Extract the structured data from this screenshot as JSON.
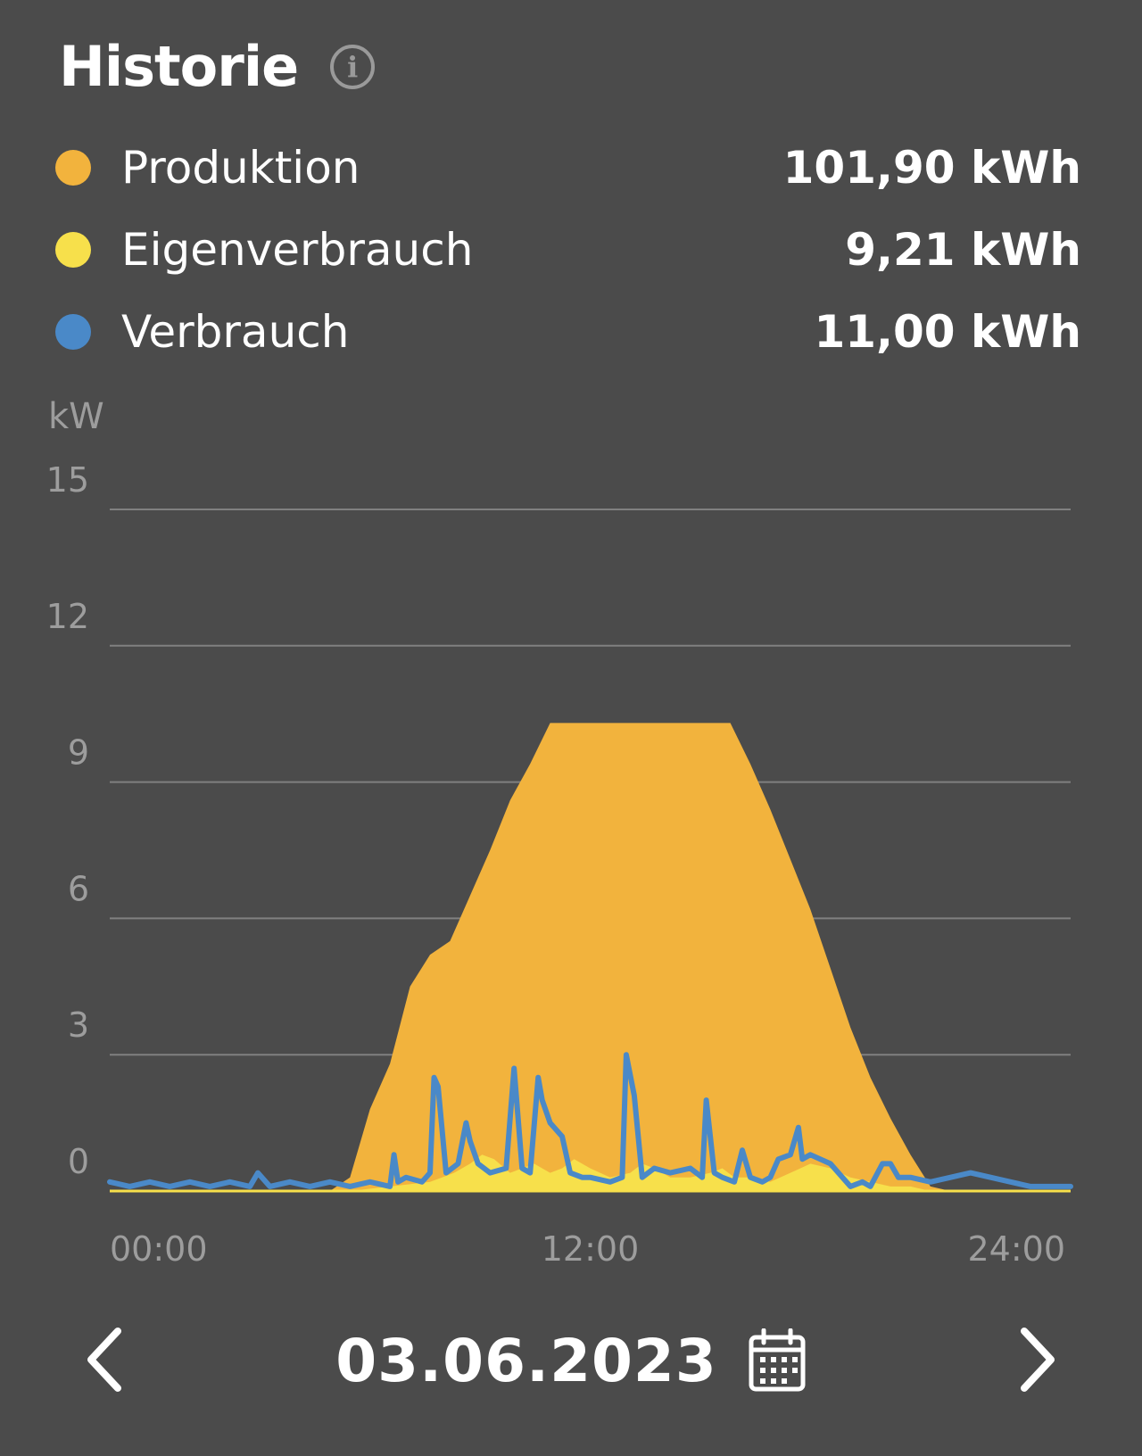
{
  "header": {
    "title": "Historie",
    "info_icon": "info-icon"
  },
  "legend": [
    {
      "name": "Produktion",
      "value": "101,90 kWh",
      "color": "#f2b33d"
    },
    {
      "name": "Eigenverbrauch",
      "value": "9,21 kWh",
      "color": "#f7e04b"
    },
    {
      "name": "Verbrauch",
      "value": "11,00 kWh",
      "color": "#4a89c8"
    }
  ],
  "chart_data": {
    "type": "area",
    "ylabel": "kW",
    "yticks": [
      15,
      12,
      9,
      6,
      3,
      0
    ],
    "ylim": [
      0,
      15
    ],
    "xlim": [
      0,
      24
    ],
    "xticks": [
      "00:00",
      "12:00",
      "24:00"
    ],
    "grid": true,
    "series": [
      {
        "name": "Produktion",
        "type": "area",
        "color": "#f2b33d",
        "x": [
          0,
          5.5,
          6.0,
          6.5,
          7.0,
          7.5,
          8.0,
          8.5,
          9.0,
          9.5,
          10.0,
          10.5,
          11.0,
          11.5,
          12.0,
          13.0,
          14.0,
          15.0,
          15.5,
          16.0,
          16.5,
          17.0,
          17.5,
          18.0,
          18.5,
          19.0,
          19.5,
          20.0,
          20.5,
          21.0,
          24
        ],
        "y": [
          0,
          0,
          0.3,
          1.8,
          2.8,
          4.5,
          5.2,
          5.5,
          6.5,
          7.5,
          8.6,
          9.4,
          10.3,
          10.3,
          10.3,
          10.3,
          10.3,
          10.3,
          10.3,
          9.4,
          8.4,
          7.3,
          6.2,
          4.9,
          3.6,
          2.5,
          1.6,
          0.8,
          0.1,
          0,
          0
        ]
      },
      {
        "name": "Eigenverbrauch",
        "type": "area",
        "color": "#f7e04b",
        "x": [
          0,
          6,
          7,
          8,
          8.3,
          8.6,
          9,
          9.3,
          9.6,
          10,
          10.3,
          10.6,
          11,
          11.3,
          11.6,
          12,
          12.5,
          13,
          13.3,
          13.6,
          14,
          14.5,
          15,
          15.3,
          15.6,
          16,
          16.5,
          17,
          17.5,
          18,
          18.5,
          19,
          19.5,
          20,
          20.5,
          21,
          24
        ],
        "y": [
          0,
          0,
          0.1,
          0.2,
          0.3,
          0.4,
          0.6,
          0.8,
          0.7,
          0.4,
          0.5,
          0.6,
          0.4,
          0.5,
          0.7,
          0.5,
          0.3,
          0.4,
          0.6,
          0.5,
          0.3,
          0.3,
          0.4,
          0.5,
          0.3,
          0.3,
          0.2,
          0.4,
          0.6,
          0.5,
          0.3,
          0.2,
          0.1,
          0.1,
          0,
          0,
          0
        ]
      },
      {
        "name": "Verbrauch",
        "type": "line",
        "color": "#4a89c8",
        "x": [
          0,
          0.5,
          1,
          1.5,
          2,
          2.5,
          3,
          3.5,
          3.7,
          4,
          4.5,
          5,
          5.5,
          6,
          6.5,
          7,
          7.1,
          7.2,
          7.4,
          7.8,
          8,
          8.1,
          8.2,
          8.4,
          8.7,
          8.9,
          9.0,
          9.2,
          9.5,
          9.9,
          10.1,
          10.3,
          10.5,
          10.7,
          10.8,
          11.0,
          11.1,
          11.3,
          11.5,
          11.8,
          12.0,
          12.5,
          12.8,
          12.9,
          13.1,
          13.3,
          13.6,
          14.0,
          14.5,
          14.8,
          14.9,
          15.1,
          15.3,
          15.6,
          15.8,
          16.0,
          16.3,
          16.5,
          16.7,
          17.0,
          17.2,
          17.3,
          17.5,
          18.0,
          18.3,
          18.5,
          18.8,
          19.0,
          19.3,
          19.5,
          19.7,
          20.0,
          20.5,
          21.0,
          21.5,
          22.0,
          22.5,
          23.0,
          23.5,
          24.0
        ],
        "y": [
          0.2,
          0.1,
          0.2,
          0.1,
          0.2,
          0.1,
          0.2,
          0.1,
          0.4,
          0.1,
          0.2,
          0.1,
          0.2,
          0.1,
          0.2,
          0.1,
          0.8,
          0.2,
          0.3,
          0.2,
          0.4,
          2.5,
          2.3,
          0.4,
          0.6,
          1.5,
          1.1,
          0.6,
          0.4,
          0.5,
          2.7,
          0.5,
          0.4,
          2.5,
          2.0,
          1.5,
          1.4,
          1.2,
          0.4,
          0.3,
          0.3,
          0.2,
          0.3,
          3.0,
          2.1,
          0.3,
          0.5,
          0.4,
          0.5,
          0.3,
          2.0,
          0.4,
          0.3,
          0.2,
          0.9,
          0.3,
          0.2,
          0.3,
          0.7,
          0.8,
          1.4,
          0.7,
          0.8,
          0.6,
          0.3,
          0.1,
          0.2,
          0.1,
          0.6,
          0.6,
          0.3,
          0.3,
          0.2,
          0.3,
          0.4,
          0.3,
          0.2,
          0.1,
          0.1,
          0.1
        ]
      }
    ]
  },
  "nav": {
    "date": "03.06.2023",
    "prev_icon": "chevron-left-icon",
    "next_icon": "chevron-right-icon",
    "calendar_icon": "calendar-icon"
  }
}
